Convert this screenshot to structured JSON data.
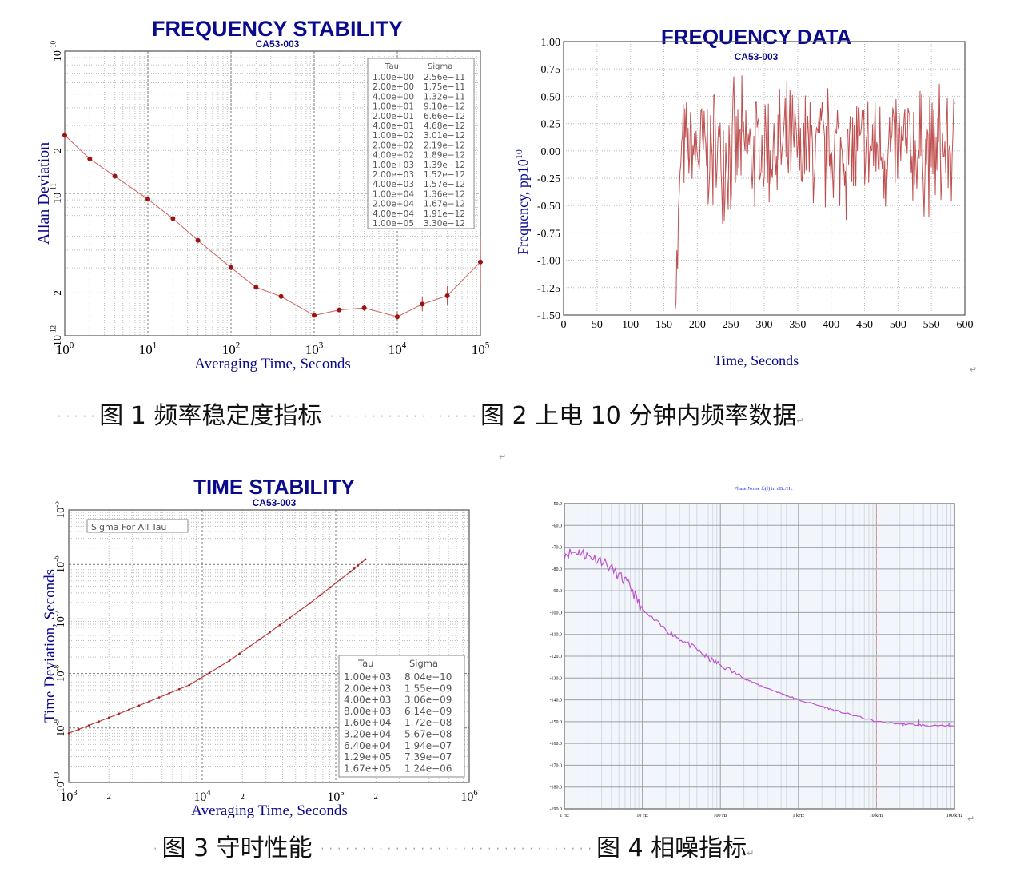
{
  "captions": {
    "fig1": "图 1  频率稳定度指标",
    "fig2": "图 2  上电 10 分钟内频率数据",
    "fig3": "图 3  守时性能",
    "fig4": "图 4  相噪指标",
    "paragraph_mark": "↵"
  },
  "chart_data": [
    {
      "id": "fig1",
      "type": "line",
      "title": "FREQUENCY STABILITY",
      "subtitle": "CA53-003",
      "xlabel": "Averaging Time, Seconds",
      "ylabel": "Allan Deviation",
      "xscale": "log",
      "yscale": "log",
      "xlim": [
        1,
        100000
      ],
      "ylim": [
        1e-12,
        1e-10
      ],
      "xticks": [
        "10^0",
        "10^1",
        "10^2",
        "10^3",
        "10^4",
        "10^5"
      ],
      "yticks": [
        "10^-12",
        "2",
        "10^-11",
        "2",
        "10^-10"
      ],
      "grid": true,
      "color": "#b22222",
      "table_headers": [
        "Tau",
        "Sigma"
      ],
      "table": [
        [
          "1.00e+00",
          "2.56e-11"
        ],
        [
          "2.00e+00",
          "1.75e-11"
        ],
        [
          "4.00e+00",
          "1.32e-11"
        ],
        [
          "1.00e+01",
          "9.10e-12"
        ],
        [
          "2.00e+01",
          "6.66e-12"
        ],
        [
          "4.00e+01",
          "4.68e-12"
        ],
        [
          "1.00e+02",
          "3.01e-12"
        ],
        [
          "2.00e+02",
          "2.19e-12"
        ],
        [
          "4.00e+02",
          "1.89e-12"
        ],
        [
          "1.00e+03",
          "1.39e-12"
        ],
        [
          "2.00e+03",
          "1.52e-12"
        ],
        [
          "4.00e+03",
          "1.57e-12"
        ],
        [
          "1.00e+04",
          "1.36e-12"
        ],
        [
          "2.00e+04",
          "1.67e-12"
        ],
        [
          "4.00e+04",
          "1.91e-12"
        ],
        [
          "1.00e+05",
          "3.30e-12"
        ]
      ],
      "x": [
        1,
        2,
        4,
        10,
        20,
        40,
        100,
        200,
        400,
        1000,
        2000,
        4000,
        10000,
        20000,
        40000,
        100000
      ],
      "values": [
        2.56e-11,
        1.75e-11,
        1.32e-11,
        9.1e-12,
        6.66e-12,
        4.68e-12,
        3.01e-12,
        2.19e-12,
        1.89e-12,
        1.39e-12,
        1.52e-12,
        1.57e-12,
        1.36e-12,
        1.67e-12,
        1.91e-12,
        3.3e-12
      ]
    },
    {
      "id": "fig2",
      "type": "line",
      "title": "FREQUENCY DATA",
      "subtitle": "CA53-003",
      "xlabel": "Time, Seconds",
      "ylabel": "Frequency, pp10^10",
      "xlim": [
        0,
        600
      ],
      "ylim": [
        -1.5,
        1.0
      ],
      "xticks": [
        "0",
        "50",
        "100",
        "150",
        "200",
        "250",
        "300",
        "350",
        "400",
        "450",
        "500",
        "550",
        "600"
      ],
      "yticks": [
        "1.00",
        "0.75",
        "0.50",
        "0.25",
        "0.00",
        "-0.25",
        "-0.50",
        "-0.75",
        "-1.00",
        "-1.25",
        "-1.50"
      ],
      "grid": true,
      "color": "#c0504d",
      "note": "noisy series starting ~167 s at -1.45, settling to ±0.5 around 0 through ~585 s"
    },
    {
      "id": "fig3",
      "type": "line",
      "title": "TIME STABILITY",
      "subtitle": "CA53-003",
      "xlabel": "Averaging Time, Seconds",
      "ylabel": "Time Deviation,  Seconds",
      "legend_box": "Sigma For All Tau",
      "xscale": "log",
      "yscale": "log",
      "xlim": [
        1000,
        1000000
      ],
      "ylim": [
        1e-10,
        1e-05
      ],
      "xticks": [
        "10^3",
        "2",
        "10^4",
        "2",
        "10^5",
        "2",
        "10^6"
      ],
      "yticks": [
        "10^-10",
        "10^-9",
        "10^-8",
        "10^-7",
        "10^-6",
        "10^-5"
      ],
      "grid": true,
      "color": "#b22222",
      "table_headers": [
        "Tau",
        "Sigma"
      ],
      "table": [
        [
          "1.00e+03",
          "8.04e-10"
        ],
        [
          "2.00e+03",
          "1.55e-09"
        ],
        [
          "4.00e+03",
          "3.06e-09"
        ],
        [
          "8.00e+03",
          "6.14e-09"
        ],
        [
          "1.60e+04",
          "1.72e-08"
        ],
        [
          "3.20e+04",
          "5.67e-08"
        ],
        [
          "6.40e+04",
          "1.94e-07"
        ],
        [
          "1.29e+05",
          "7.39e-07"
        ],
        [
          "1.67e+05",
          "1.24e-06"
        ]
      ],
      "x": [
        1000,
        2000,
        4000,
        8000,
        16000,
        32000,
        64000,
        129000,
        167000
      ],
      "values": [
        8.04e-10,
        1.55e-09,
        3.06e-09,
        6.14e-09,
        1.72e-08,
        5.67e-08,
        1.94e-07,
        7.39e-07,
        1.24e-06
      ]
    },
    {
      "id": "fig4",
      "type": "line",
      "title": "Phase Noise ℒ(f) in dBc/Hz",
      "xlabel": "",
      "ylabel": "",
      "xscale": "log",
      "xlim": [
        1,
        100000
      ],
      "ylim": [
        -190,
        -50
      ],
      "xticks": [
        "1 Hz",
        "10 Hz",
        "100 Hz",
        "1 kHz",
        "10 kHz",
        "100 kHz"
      ],
      "yticks": [
        "-50.0",
        "-60.0",
        "-70.0",
        "-80.0",
        "-90.0",
        "-100.0",
        "-110.0",
        "-120.0",
        "-130.0",
        "-140.0",
        "-150.0",
        "-160.0",
        "-170.0",
        "-180.0",
        "-190.0"
      ],
      "grid": true,
      "color": "#c050d0",
      "marker_line_x": 10000,
      "x": [
        1,
        1.5,
        2,
        3,
        5,
        7,
        10,
        20,
        30,
        50,
        70,
        100,
        200,
        300,
        500,
        700,
        1000,
        2000,
        3000,
        5000,
        10000,
        20000,
        35000,
        50000,
        100000
      ],
      "values": [
        -73,
        -72,
        -74,
        -76,
        -83,
        -88,
        -99,
        -108,
        -112,
        -117,
        -121,
        -124,
        -130,
        -133,
        -136,
        -138,
        -140,
        -143,
        -145,
        -147,
        -150,
        -151,
        -151.5,
        -152,
        -152
      ]
    }
  ]
}
